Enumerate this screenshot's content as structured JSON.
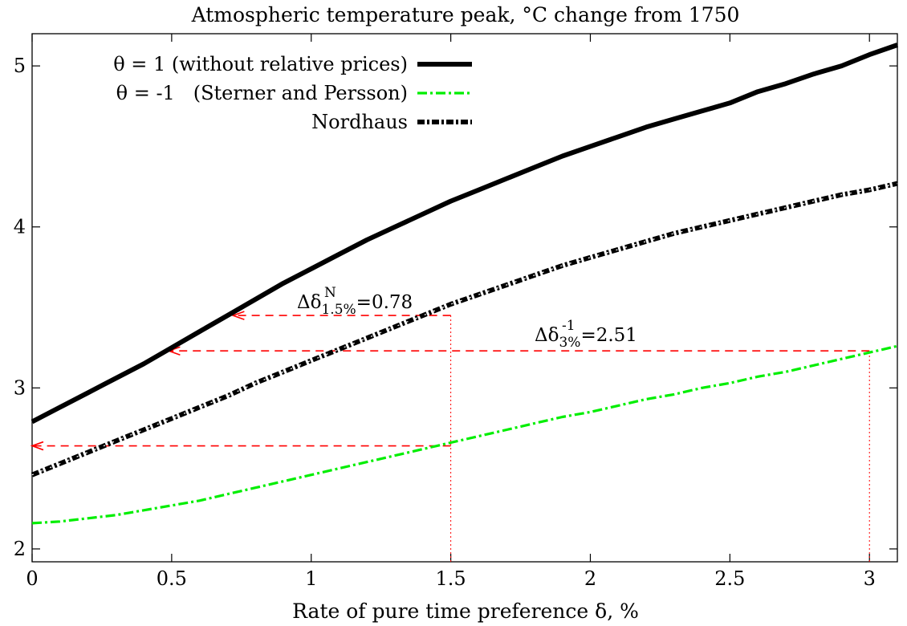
{
  "chart_data": {
    "type": "line",
    "title": "Atmospheric temperature peak, °C change from 1750",
    "xlabel": "Rate of pure time preference δ, %",
    "ylabel": "",
    "xlim": [
      0,
      3.1
    ],
    "ylim": [
      1.92,
      5.2
    ],
    "xticks": [
      0,
      0.5,
      1,
      1.5,
      2,
      2.5,
      3
    ],
    "xtick_labels": [
      "0",
      "0.5",
      "1",
      "1.5",
      "2",
      "2.5",
      "3"
    ],
    "yticks": [
      2,
      3,
      4,
      5
    ],
    "ytick_labels": [
      "2",
      "3",
      "4",
      "5"
    ],
    "grid": false,
    "legend_position": "top-left",
    "series": [
      {
        "name": "θ = 1 (without relative prices)",
        "color": "#000000",
        "style": "solid",
        "x": [
          0,
          0.1,
          0.2,
          0.3,
          0.4,
          0.5,
          0.6,
          0.7,
          0.8,
          0.9,
          1.0,
          1.1,
          1.2,
          1.3,
          1.4,
          1.5,
          1.6,
          1.7,
          1.8,
          1.9,
          2.0,
          2.1,
          2.2,
          2.3,
          2.4,
          2.5,
          2.6,
          2.7,
          2.8,
          2.9,
          3.0,
          3.1
        ],
        "y": [
          2.79,
          2.88,
          2.97,
          3.06,
          3.15,
          3.25,
          3.35,
          3.45,
          3.55,
          3.65,
          3.74,
          3.83,
          3.92,
          4.0,
          4.08,
          4.16,
          4.23,
          4.3,
          4.37,
          4.44,
          4.5,
          4.56,
          4.62,
          4.67,
          4.72,
          4.77,
          4.84,
          4.89,
          4.95,
          5.0,
          5.07,
          5.13
        ]
      },
      {
        "name": "θ = -1   (Sterner and Persson)",
        "color": "#00ee00",
        "style": "dash-dot",
        "x": [
          0,
          0.1,
          0.2,
          0.3,
          0.4,
          0.5,
          0.6,
          0.7,
          0.8,
          0.9,
          1.0,
          1.1,
          1.2,
          1.3,
          1.4,
          1.5,
          1.6,
          1.7,
          1.8,
          1.9,
          2.0,
          2.1,
          2.2,
          2.3,
          2.4,
          2.5,
          2.6,
          2.7,
          2.8,
          2.9,
          3.0,
          3.1
        ],
        "y": [
          2.16,
          2.17,
          2.19,
          2.21,
          2.24,
          2.27,
          2.3,
          2.34,
          2.38,
          2.42,
          2.46,
          2.5,
          2.54,
          2.58,
          2.62,
          2.66,
          2.7,
          2.74,
          2.78,
          2.82,
          2.85,
          2.89,
          2.93,
          2.96,
          3.0,
          3.03,
          3.07,
          3.1,
          3.14,
          3.18,
          3.22,
          3.26
        ]
      },
      {
        "name": "Nordhaus",
        "color": "#000000",
        "style": "dash-dot-heavy",
        "x": [
          0,
          0.1,
          0.2,
          0.3,
          0.4,
          0.5,
          0.6,
          0.7,
          0.8,
          0.9,
          1.0,
          1.1,
          1.2,
          1.3,
          1.4,
          1.5,
          1.6,
          1.7,
          1.8,
          1.9,
          2.0,
          2.1,
          2.2,
          2.3,
          2.4,
          2.5,
          2.6,
          2.7,
          2.8,
          2.9,
          3.0,
          3.1
        ],
        "y": [
          2.46,
          2.53,
          2.6,
          2.67,
          2.74,
          2.81,
          2.88,
          2.95,
          3.03,
          3.1,
          3.17,
          3.24,
          3.31,
          3.38,
          3.45,
          3.52,
          3.58,
          3.64,
          3.7,
          3.76,
          3.81,
          3.86,
          3.91,
          3.96,
          4.0,
          4.04,
          4.08,
          4.12,
          4.16,
          4.2,
          4.23,
          4.27
        ]
      }
    ],
    "annotations": [
      {
        "label_main": "Δδ",
        "label_sup": "N",
        "label_sub": "1.5%",
        "label_value": "=0.78",
        "vline_x": 1.5,
        "arrows": [
          {
            "y": 3.45,
            "x_from": 1.5,
            "x_to": 0.72
          },
          {
            "y": 2.64,
            "x_from": 1.5,
            "x_to": 0.0
          }
        ]
      },
      {
        "label_main": "Δδ",
        "label_sup": "-1",
        "label_sub": "3%",
        "label_value": "=2.51",
        "vline_x": 3.0,
        "arrows": [
          {
            "y": 3.23,
            "x_from": 3.0,
            "x_to": 0.49
          }
        ]
      }
    ],
    "annotation_color": "#ff0000"
  }
}
